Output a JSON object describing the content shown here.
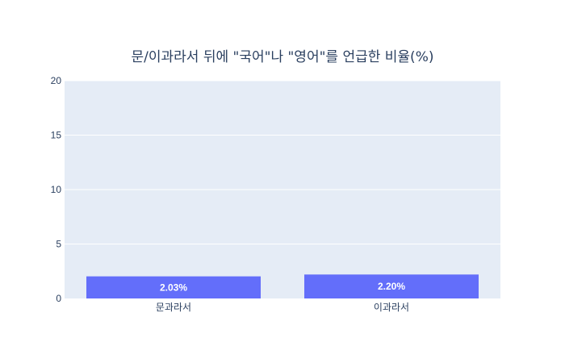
{
  "chart_data": {
    "type": "bar",
    "title": "문/이과라서 뒤에 \"국어\"나 \"영어\"를 언급한 비율(%)",
    "categories": [
      "문과라서",
      "이과라서"
    ],
    "values": [
      2.03,
      2.2
    ],
    "data_labels": [
      "2.03%",
      "2.20%"
    ],
    "ylim": [
      0,
      20
    ],
    "yticks": [
      0,
      5,
      10,
      15,
      20
    ],
    "grid": true,
    "colors": {
      "bar": "#636efa",
      "plot_bg": "#e5ecf6",
      "grid": "#ffffff",
      "text": "#2a3f5f"
    }
  }
}
